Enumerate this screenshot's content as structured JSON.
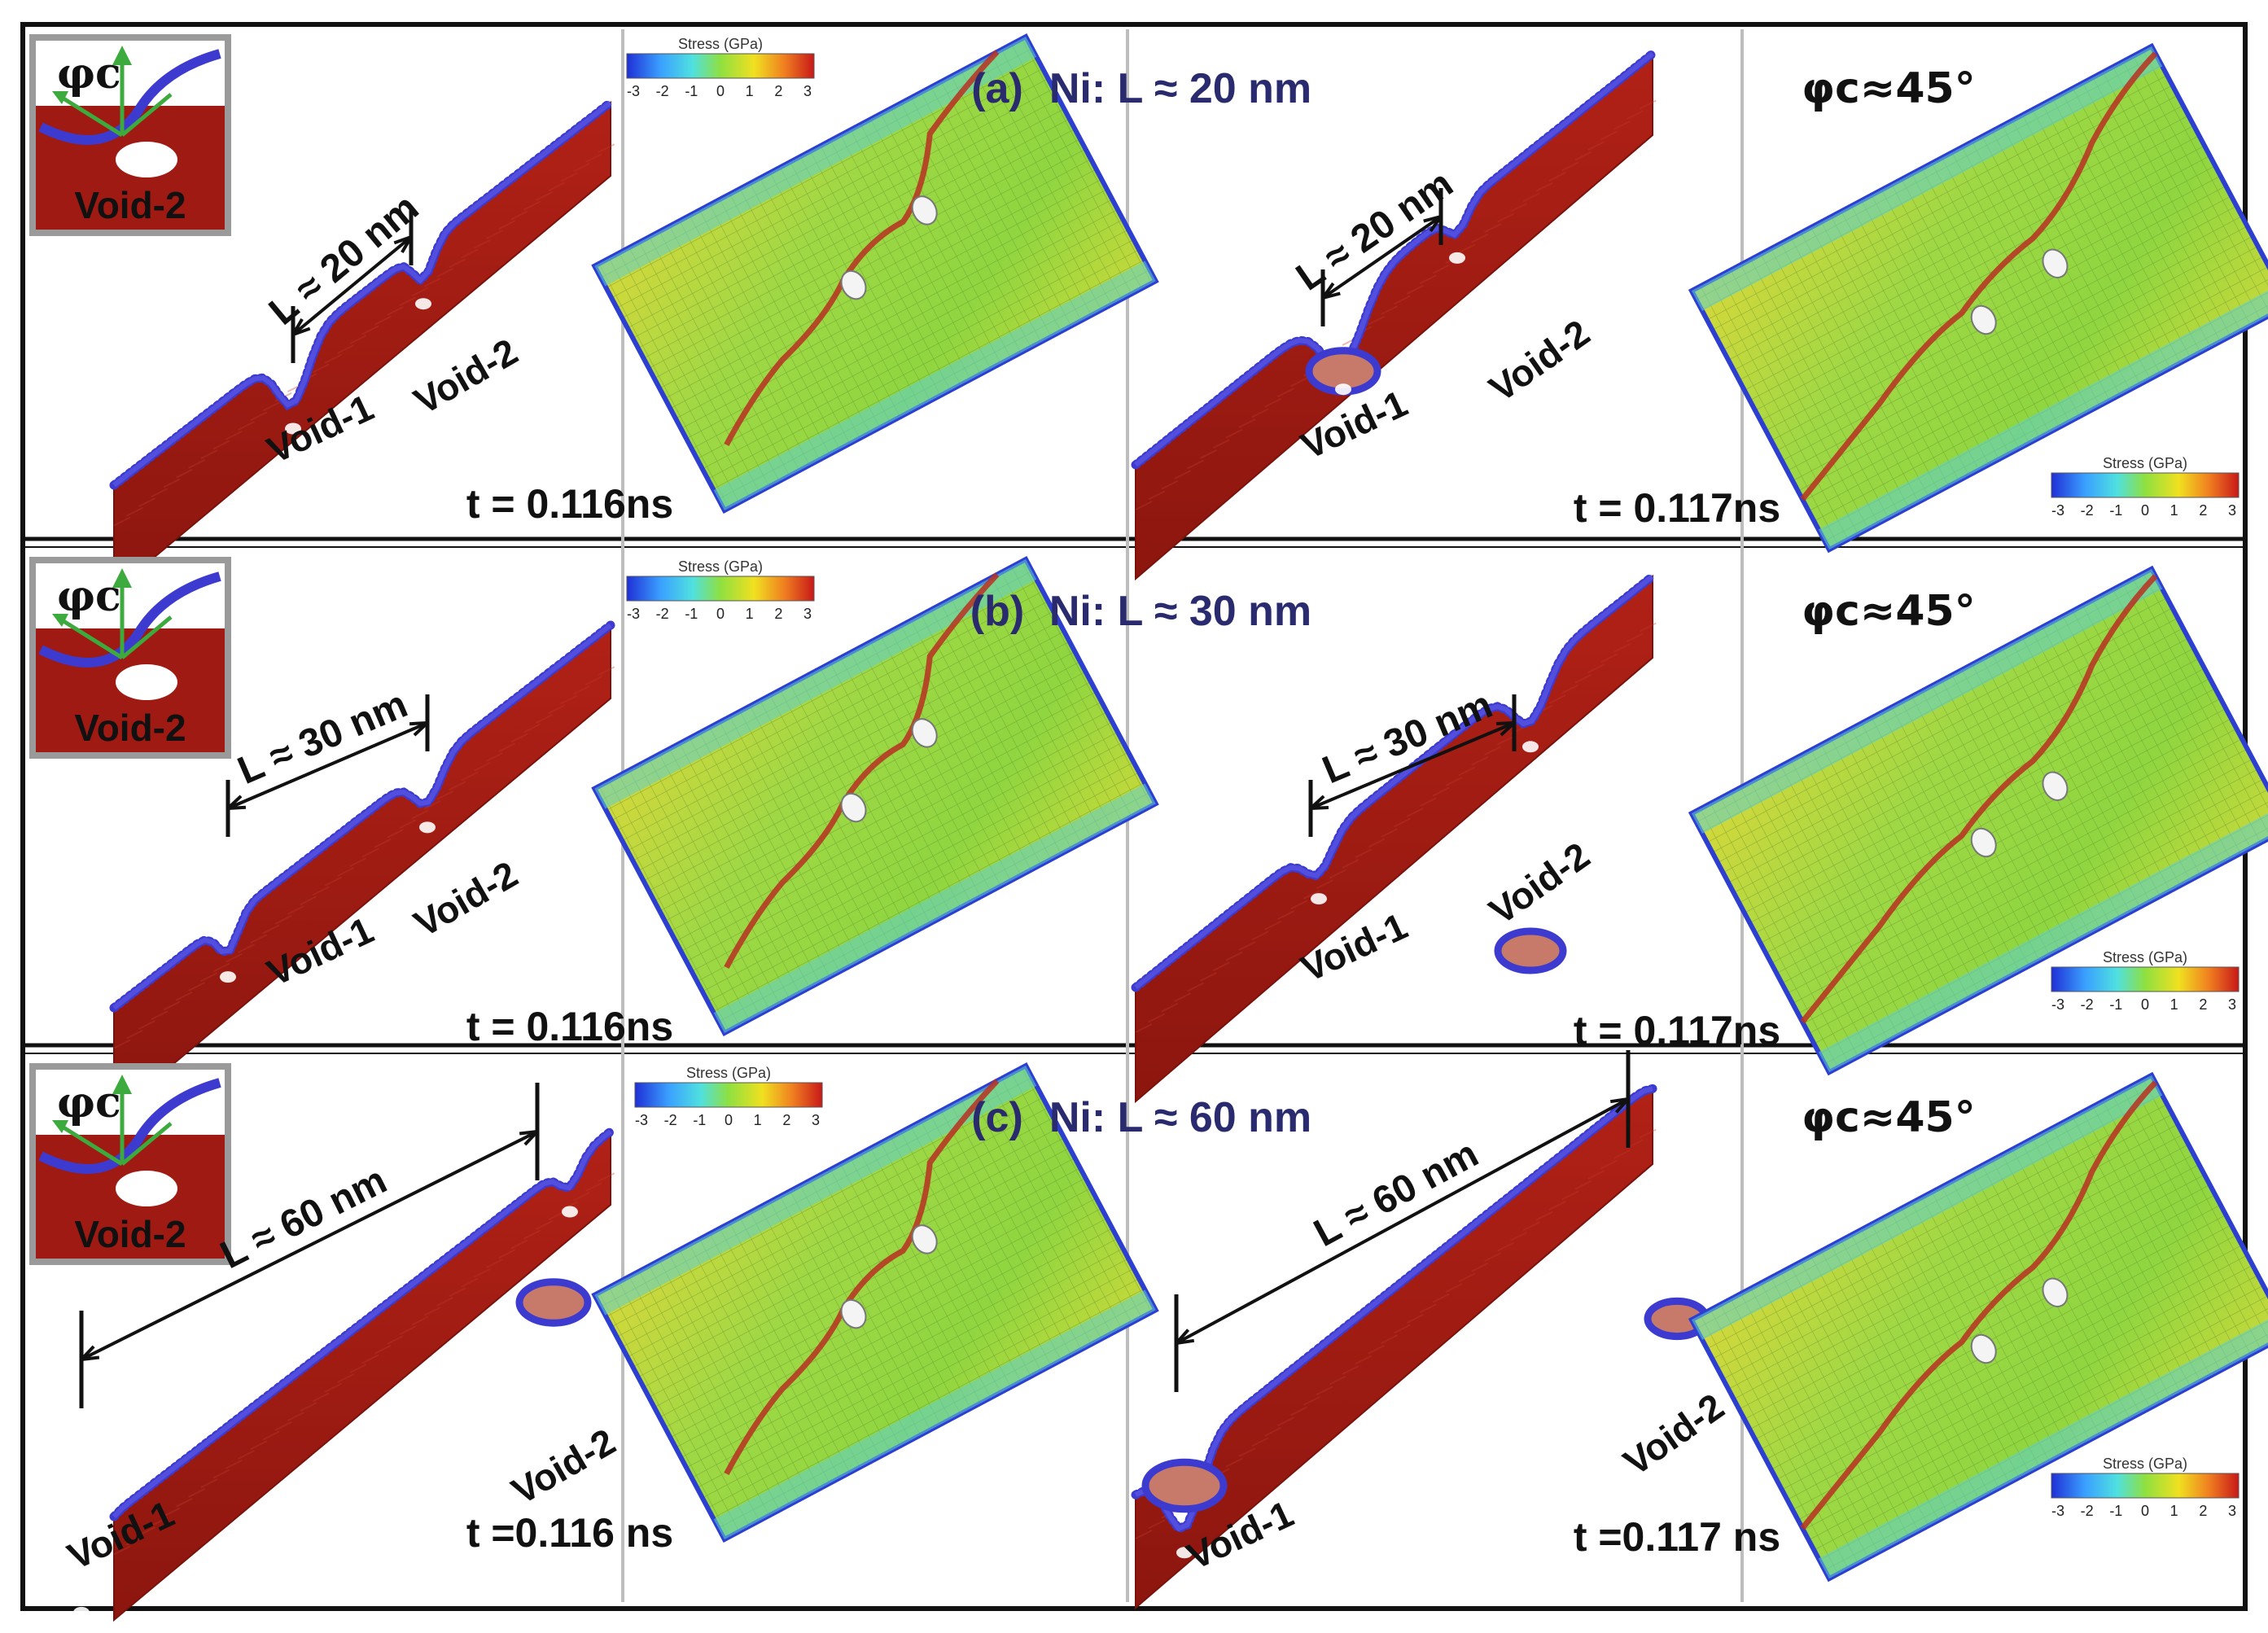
{
  "rows": [
    {
      "title_tag": "(a)",
      "title_text": "Ni: L ≈ 20 nm",
      "length_label": "L ≈ 20 nm",
      "time_left": "t = 0.116ns",
      "time_right": "t = 0.117ns",
      "angle_label": "φc≈45°",
      "void1": "Void-1",
      "void2": "Void-2",
      "inset_symbol": "φc",
      "inset_label": "Void-2"
    },
    {
      "title_tag": "(b)",
      "title_text": "Ni: L ≈ 30 nm",
      "length_label": "L ≈ 30 nm",
      "time_left": "t = 0.116ns",
      "time_right": "t = 0.117ns",
      "angle_label": "φc≈45°",
      "void1": "Void-1",
      "void2": "Void-2",
      "inset_symbol": "φc",
      "inset_label": "Void-2"
    },
    {
      "title_tag": "(c)",
      "title_text": "Ni: L ≈ 60 nm",
      "length_label": "L ≈ 60 nm",
      "time_left": "t =0.116 ns",
      "time_right": "t =0.117 ns",
      "angle_label": "φc≈45°",
      "void1": "Void-1",
      "void2": "Void-2",
      "inset_symbol": "φc",
      "inset_label": "Void-2"
    }
  ],
  "colorbar": {
    "title": "Stress (GPa)",
    "ticks": [
      "-3",
      "-2",
      "-1",
      "0",
      "1",
      "2",
      "3"
    ],
    "colors": [
      "#1f2fd6",
      "#3aa0ff",
      "#4fe0e0",
      "#8fe040",
      "#f0e020",
      "#f08020",
      "#c81818"
    ]
  },
  "colors": {
    "metal": "#9e1a12",
    "metal_dark": "#7a120c",
    "surface_atoms": "#3d3ad0",
    "title_navy": "#2a2a6e",
    "stress_field": "#9ad640",
    "crack": "#b83022",
    "frame": "#111111"
  }
}
